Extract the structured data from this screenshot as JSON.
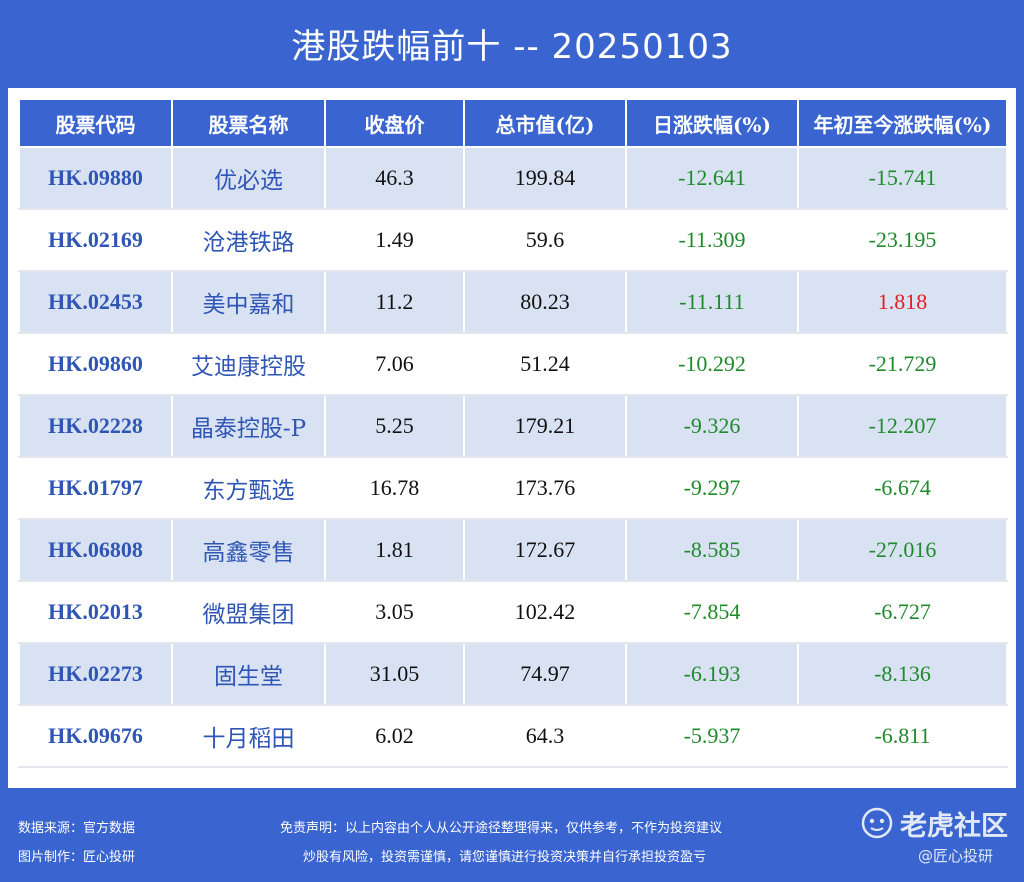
{
  "title": "港股跌幅前十 -- 20250103",
  "chart_data": {
    "type": "table",
    "columns": [
      "股票代码",
      "股票名称",
      "收盘价",
      "总市值(亿)",
      "日涨跌幅(%)",
      "年初至今涨跌幅(%)"
    ],
    "rows": [
      {
        "code": "HK.09880",
        "name": "优必选",
        "close": "46.3",
        "mcap": "199.84",
        "day": "-12.641",
        "ytd": "-15.741"
      },
      {
        "code": "HK.02169",
        "name": "沧港铁路",
        "close": "1.49",
        "mcap": "59.6",
        "day": "-11.309",
        "ytd": "-23.195"
      },
      {
        "code": "HK.02453",
        "name": "美中嘉和",
        "close": "11.2",
        "mcap": "80.23",
        "day": "-11.111",
        "ytd": "1.818"
      },
      {
        "code": "HK.09860",
        "name": "艾迪康控股",
        "close": "7.06",
        "mcap": "51.24",
        "day": "-10.292",
        "ytd": "-21.729"
      },
      {
        "code": "HK.02228",
        "name": "晶泰控股-P",
        "close": "5.25",
        "mcap": "179.21",
        "day": "-9.326",
        "ytd": "-12.207"
      },
      {
        "code": "HK.01797",
        "name": "东方甄选",
        "close": "16.78",
        "mcap": "173.76",
        "day": "-9.297",
        "ytd": "-6.674"
      },
      {
        "code": "HK.06808",
        "name": "高鑫零售",
        "close": "1.81",
        "mcap": "172.67",
        "day": "-8.585",
        "ytd": "-27.016"
      },
      {
        "code": "HK.02013",
        "name": "微盟集团",
        "close": "3.05",
        "mcap": "102.42",
        "day": "-7.854",
        "ytd": "-6.727"
      },
      {
        "code": "HK.02273",
        "name": "固生堂",
        "close": "31.05",
        "mcap": "74.97",
        "day": "-6.193",
        "ytd": "-8.136"
      },
      {
        "code": "HK.09676",
        "name": "十月稻田",
        "close": "6.02",
        "mcap": "64.3",
        "day": "-5.937",
        "ytd": "-6.811"
      }
    ]
  },
  "footer": {
    "source": "数据来源：官方数据",
    "maker": "图片制作：匠心投研",
    "disclaimer1": "免责声明：以上内容由个人从公开途径整理得来，仅供参考，不作为投资建议",
    "disclaimer2": "炒股有风险，投资需谨慎，请您谨慎进行投资决策并自行承担投资盈亏",
    "watermark_brand": "老虎社区",
    "watermark_handle": "@匠心投研"
  },
  "colors": {
    "header_bg": "#3a64cf",
    "stripe": "#d9e2f3",
    "negative": "#1f8a2b",
    "positive": "#e02020",
    "code_text": "#2f56b5"
  }
}
